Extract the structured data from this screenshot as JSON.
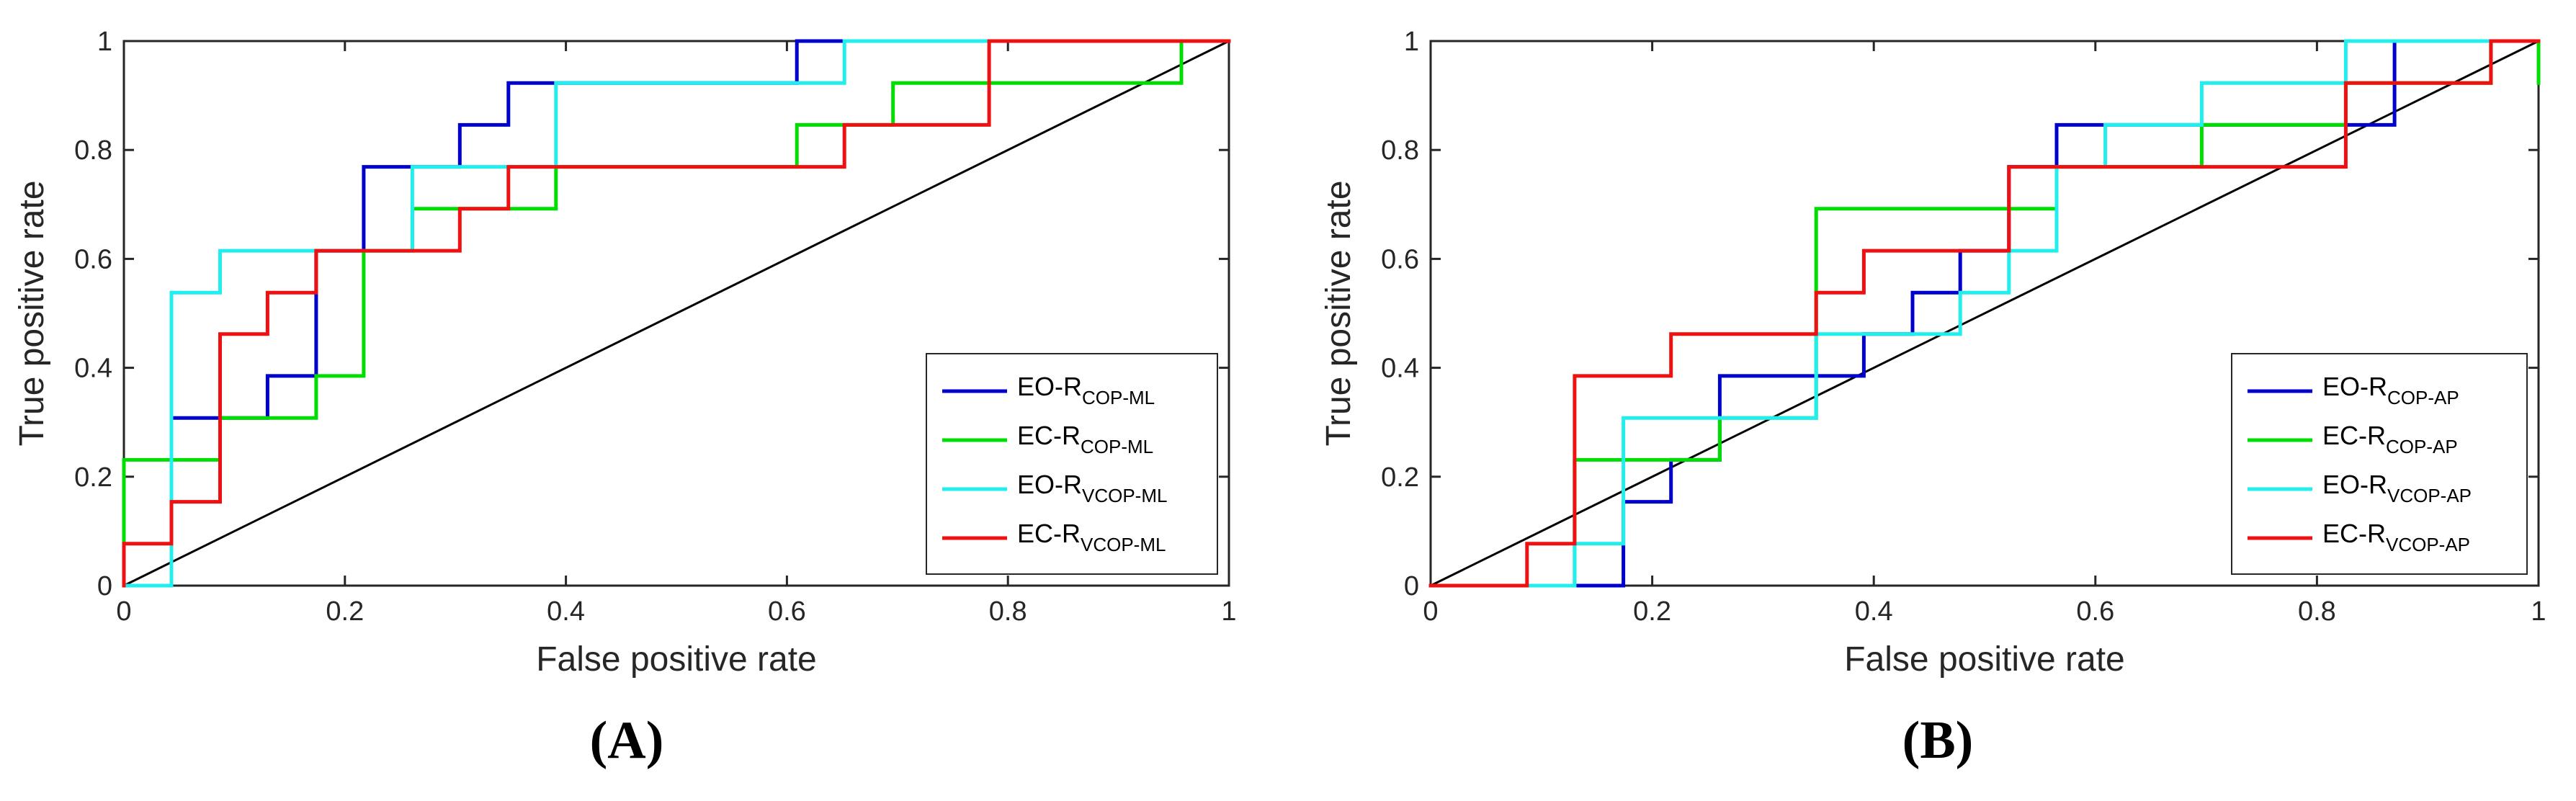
{
  "chart_data": [
    {
      "id": "A",
      "type": "line",
      "panel_label": "(A)",
      "xlabel": "False positive rate",
      "ylabel": "True positive rate",
      "xlim": [
        0,
        1
      ],
      "ylim": [
        0,
        1
      ],
      "xticks": [
        0,
        0.2,
        0.4,
        0.6,
        0.8,
        1
      ],
      "yticks": [
        0,
        0.2,
        0.4,
        0.6,
        0.8,
        1
      ],
      "xtick_labels": [
        "0",
        "0.2",
        "0.4",
        "0.6",
        "0.8",
        "1"
      ],
      "ytick_labels": [
        "0",
        "0.2",
        "0.4",
        "0.6",
        "0.8",
        "1"
      ],
      "grid": false,
      "legend_position": "lower-right",
      "diagonal": {
        "x": [
          0,
          1
        ],
        "y": [
          0,
          1
        ],
        "color": "#000000"
      },
      "series": [
        {
          "name": "EO-R",
          "name_sub": "COP-ML",
          "color": "#0000cc",
          "x": [
            0,
            0.043,
            0.043,
            0.087,
            0.087,
            0.13,
            0.13,
            0.174,
            0.174,
            0.217,
            0.217,
            0.304,
            0.304,
            0.348,
            0.348,
            0.609,
            0.609,
            0.652,
            0.652,
            1
          ],
          "y": [
            0,
            0,
            0.308,
            0.308,
            0.308,
            0.308,
            0.385,
            0.385,
            0.615,
            0.615,
            0.769,
            0.769,
            0.846,
            0.846,
            0.923,
            0.923,
            1,
            1,
            1,
            1
          ]
        },
        {
          "name": "EC-R",
          "name_sub": "COP-ML",
          "color": "#00dd00",
          "x": [
            0,
            0,
            0.043,
            0.043,
            0.087,
            0.087,
            0.174,
            0.174,
            0.217,
            0.217,
            0.261,
            0.261,
            0.348,
            0.348,
            0.391,
            0.391,
            0.609,
            0.609,
            0.696,
            0.696,
            0.957,
            0.957,
            1
          ],
          "y": [
            0,
            0.231,
            0.231,
            0.231,
            0.231,
            0.308,
            0.308,
            0.385,
            0.385,
            0.615,
            0.615,
            0.692,
            0.692,
            0.692,
            0.692,
            0.769,
            0.769,
            0.846,
            0.846,
            0.923,
            0.923,
            1,
            1
          ]
        },
        {
          "name": "EO-R",
          "name_sub": "VCOP-ML",
          "color": "#22eeee",
          "x": [
            0,
            0.043,
            0.043,
            0.087,
            0.087,
            0.174,
            0.174,
            0.261,
            0.261,
            0.391,
            0.391,
            0.652,
            0.652,
            1
          ],
          "y": [
            0,
            0,
            0.538,
            0.538,
            0.615,
            0.615,
            0.615,
            0.615,
            0.769,
            0.769,
            0.923,
            0.923,
            1,
            1
          ]
        },
        {
          "name": "EC-R",
          "name_sub": "VCOP-ML",
          "color": "#ee1111",
          "x": [
            0,
            0,
            0.043,
            0.043,
            0.087,
            0.087,
            0.13,
            0.13,
            0.174,
            0.174,
            0.304,
            0.304,
            0.348,
            0.348,
            0.652,
            0.652,
            0.783,
            0.783,
            1
          ],
          "y": [
            0,
            0.077,
            0.077,
            0.154,
            0.154,
            0.462,
            0.462,
            0.538,
            0.538,
            0.615,
            0.615,
            0.692,
            0.692,
            0.769,
            0.769,
            0.846,
            0.846,
            1,
            1
          ]
        }
      ]
    },
    {
      "id": "B",
      "type": "line",
      "panel_label": "(B)",
      "xlabel": "False positive rate",
      "ylabel": "True positive rate",
      "xlim": [
        0,
        1
      ],
      "ylim": [
        0,
        1
      ],
      "xticks": [
        0,
        0.2,
        0.4,
        0.6,
        0.8,
        1
      ],
      "yticks": [
        0,
        0.2,
        0.4,
        0.6,
        0.8,
        1
      ],
      "xtick_labels": [
        "0",
        "0.2",
        "0.4",
        "0.6",
        "0.8",
        "1"
      ],
      "ytick_labels": [
        "0",
        "0.2",
        "0.4",
        "0.6",
        "0.8",
        "1"
      ],
      "grid": false,
      "legend_position": "lower-right",
      "diagonal": {
        "x": [
          0,
          1
        ],
        "y": [
          0,
          1
        ],
        "color": "#000000"
      },
      "series": [
        {
          "name": "EO-R",
          "name_sub": "COP-AP",
          "color": "#0000cc",
          "x": [
            0,
            0.174,
            0.174,
            0.217,
            0.217,
            0.261,
            0.261,
            0.391,
            0.391,
            0.435,
            0.435,
            0.478,
            0.478,
            0.522,
            0.522,
            0.565,
            0.565,
            0.87,
            0.87,
            1
          ],
          "y": [
            0,
            0,
            0.154,
            0.154,
            0.231,
            0.231,
            0.385,
            0.385,
            0.462,
            0.462,
            0.538,
            0.538,
            0.615,
            0.615,
            0.769,
            0.769,
            0.846,
            0.846,
            1,
            1
          ]
        },
        {
          "name": "EC-R",
          "name_sub": "COP-AP",
          "color": "#00dd00",
          "x": [
            0,
            0.13,
            0.13,
            0.261,
            0.261,
            0.348,
            0.348,
            0.565,
            0.565,
            0.696,
            0.696,
            0.826,
            0.826,
            0.957,
            0.957,
            1,
            1
          ],
          "y": [
            0,
            0,
            0.231,
            0.231,
            0.308,
            0.308,
            0.692,
            0.692,
            0.769,
            0.769,
            0.846,
            0.846,
            0.923,
            0.923,
            1,
            1,
            0.923
          ]
        },
        {
          "name": "EO-R",
          "name_sub": "VCOP-AP",
          "color": "#22eeee",
          "x": [
            0,
            0.13,
            0.13,
            0.174,
            0.174,
            0.348,
            0.348,
            0.391,
            0.391,
            0.478,
            0.478,
            0.522,
            0.522,
            0.565,
            0.565,
            0.609,
            0.609,
            0.696,
            0.696,
            0.826,
            0.826,
            1
          ],
          "y": [
            0,
            0,
            0.077,
            0.077,
            0.308,
            0.308,
            0.462,
            0.462,
            0.462,
            0.462,
            0.538,
            0.538,
            0.615,
            0.615,
            0.769,
            0.769,
            0.846,
            0.846,
            0.923,
            0.923,
            1,
            1
          ]
        },
        {
          "name": "EC-R",
          "name_sub": "VCOP-AP",
          "color": "#ee1111",
          "x": [
            0,
            0.087,
            0.087,
            0.13,
            0.13,
            0.217,
            0.217,
            0.348,
            0.348,
            0.391,
            0.391,
            0.522,
            0.522,
            0.826,
            0.826,
            0.957,
            0.957,
            1
          ],
          "y": [
            0,
            0,
            0.077,
            0.077,
            0.385,
            0.385,
            0.462,
            0.462,
            0.538,
            0.538,
            0.615,
            0.615,
            0.769,
            0.769,
            0.923,
            0.923,
            1,
            1
          ]
        }
      ]
    }
  ]
}
